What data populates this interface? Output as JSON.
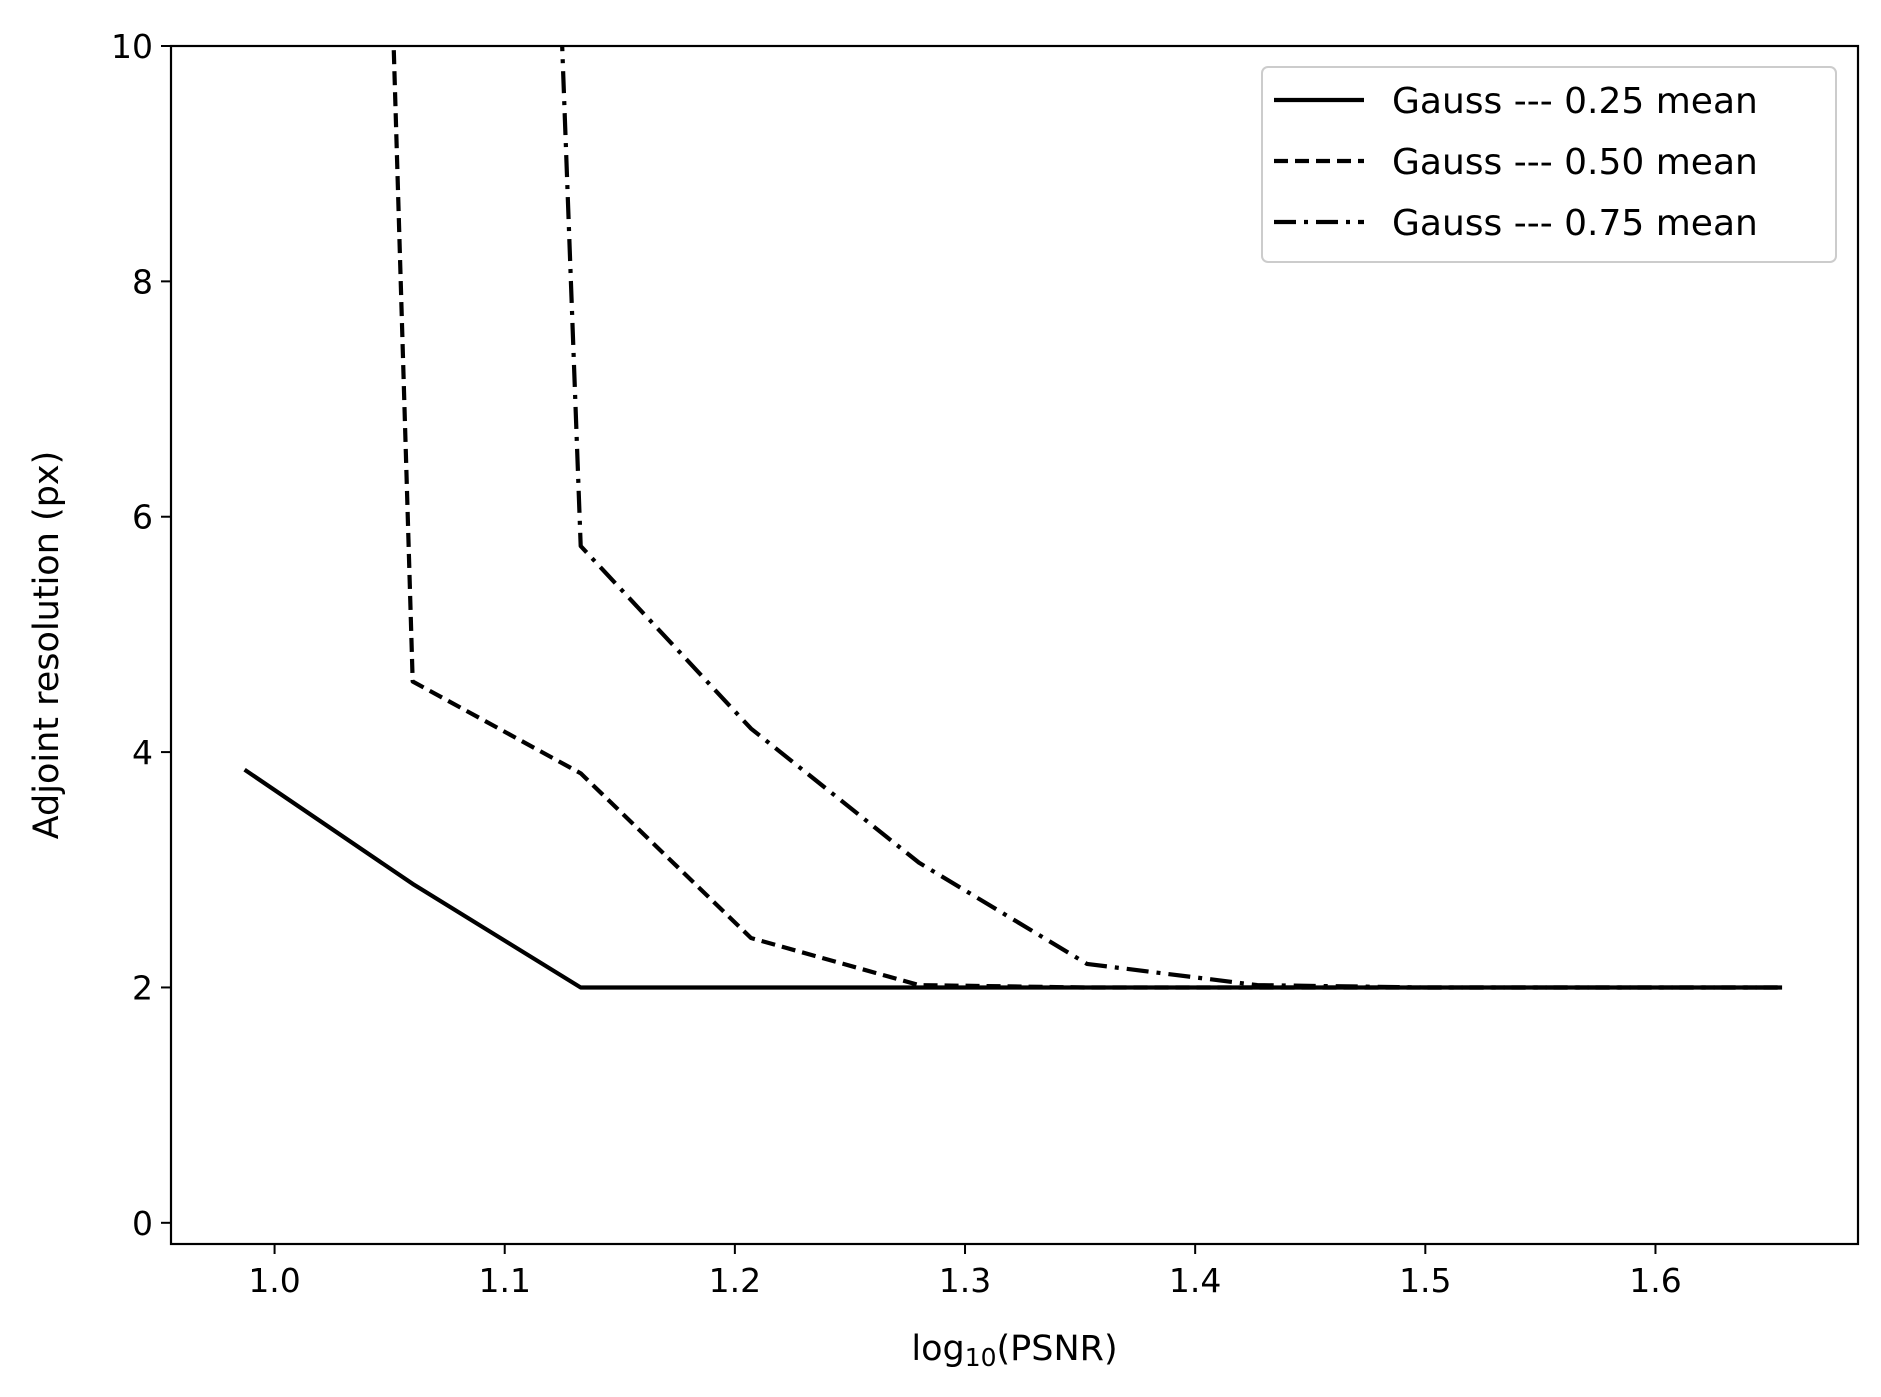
{
  "chart_data": {
    "type": "line",
    "title": "",
    "xlabel_prefix": "log",
    "xlabel_subscript": "10",
    "xlabel_suffix": "(PSNR)",
    "ylabel": "Adjoint resolution (px)",
    "xlim": [
      0.955,
      1.688
    ],
    "ylim": [
      -0.18,
      10
    ],
    "xticks": [
      1.0,
      1.1,
      1.2,
      1.3,
      1.4,
      1.5,
      1.6
    ],
    "xtick_labels": [
      "1.0",
      "1.1",
      "1.2",
      "1.3",
      "1.4",
      "1.5",
      "1.6"
    ],
    "yticks": [
      0,
      2,
      4,
      6,
      8,
      10
    ],
    "ytick_labels": [
      "0",
      "2",
      "4",
      "6",
      "8",
      "10"
    ],
    "grid": false,
    "legend_position": "top-right",
    "line_color": "#000000",
    "series": [
      {
        "name": "Gauss --- 0.25 mean",
        "style": "solid",
        "x": [
          0.987,
          1.06,
          1.133,
          1.207,
          1.28,
          1.353,
          1.427,
          1.5,
          1.573,
          1.655
        ],
        "y": [
          3.85,
          2.88,
          2.0,
          2.0,
          2.0,
          2.0,
          2.0,
          2.0,
          2.0,
          2.0
        ]
      },
      {
        "name": "Gauss --- 0.50 mean",
        "style": "dashed",
        "x": [
          1.051,
          1.06,
          1.133,
          1.207,
          1.28,
          1.353,
          1.427,
          1.5,
          1.573,
          1.655
        ],
        "y": [
          10.5,
          4.6,
          3.82,
          2.42,
          2.02,
          2.0,
          2.0,
          2.0,
          2.0,
          2.0
        ]
      },
      {
        "name": "Gauss --- 0.75 mean",
        "style": "dashdot",
        "x": [
          1.124,
          1.133,
          1.207,
          1.28,
          1.353,
          1.427,
          1.5,
          1.573,
          1.655
        ],
        "y": [
          10.5,
          5.75,
          4.2,
          3.06,
          2.2,
          2.02,
          2.0,
          2.0,
          2.0
        ]
      }
    ]
  }
}
